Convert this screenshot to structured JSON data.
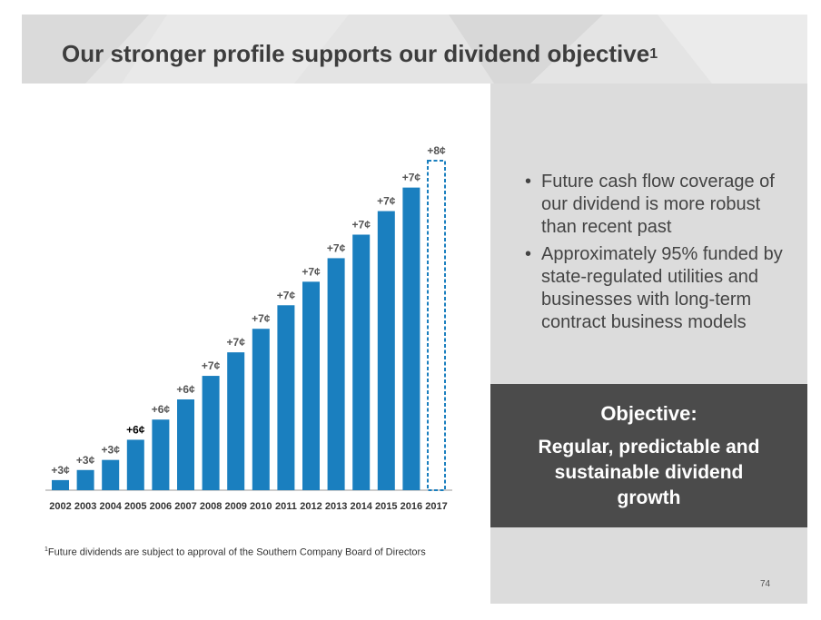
{
  "header": {
    "title": "Our stronger profile supports our dividend objective",
    "title_sup": "1"
  },
  "bullets": [
    "Future cash flow coverage of our dividend is more robust than recent past",
    "Approximately 95% funded by state-regulated utilities and businesses with long-term contract business models"
  ],
  "objective": {
    "heading": "Objective:",
    "text": "Regular, predictable and sustainable dividend growth"
  },
  "footnote": {
    "marker": "1",
    "text": "Future dividends are subject to approval of the Southern Company Board of Directors"
  },
  "page_number": "74",
  "colors": {
    "bar": "#1a7fbf",
    "projected_outline": "#1a7fbf",
    "highlight_label": "#000000",
    "label": "#555555"
  },
  "chart_data": {
    "type": "bar",
    "categories": [
      "2002",
      "2003",
      "2004",
      "2005",
      "2006",
      "2007",
      "2008",
      "2009",
      "2010",
      "2011",
      "2012",
      "2013",
      "2014",
      "2015",
      "2016",
      "2017"
    ],
    "values": [
      3,
      6,
      9,
      15,
      21,
      27,
      34,
      41,
      48,
      55,
      62,
      69,
      76,
      83,
      90,
      98
    ],
    "data_labels": [
      "+3¢",
      "+3¢",
      "+3¢",
      "+6¢",
      "+6¢",
      "+6¢",
      "+7¢",
      "+7¢",
      "+7¢",
      "+7¢",
      "+7¢",
      "+7¢",
      "+7¢",
      "+7¢",
      "+7¢",
      "+8¢"
    ],
    "projected": [
      false,
      false,
      false,
      false,
      false,
      false,
      false,
      false,
      false,
      false,
      false,
      false,
      false,
      false,
      false,
      true
    ],
    "highlighted_label_index": 3,
    "title": "",
    "xlabel": "",
    "ylabel": "",
    "ylim": [
      0,
      98
    ],
    "grid": false,
    "legend": "none"
  }
}
